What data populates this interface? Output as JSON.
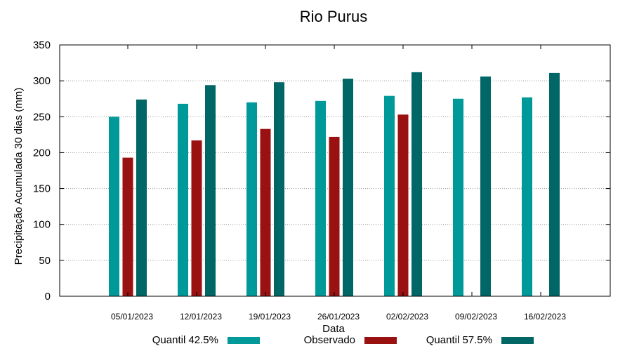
{
  "chart_data": {
    "type": "bar",
    "title": "Rio Purus",
    "xlabel": "Data",
    "ylabel": "Precipitação Acumulada 30 dias (mm)",
    "ylim": [
      0,
      350
    ],
    "yticks": [
      0,
      50,
      100,
      150,
      200,
      250,
      300,
      350
    ],
    "grid": true,
    "legend": "bottom",
    "categories": [
      "05/01/2023",
      "12/01/2023",
      "19/01/2023",
      "26/01/2023",
      "02/02/2023",
      "09/02/2023",
      "16/02/2023"
    ],
    "series": [
      {
        "name": "Quantil 42.5%",
        "color": "#009999",
        "values": [
          250,
          268,
          270,
          272,
          279,
          275,
          277
        ]
      },
      {
        "name": "Observado",
        "color": "#991111",
        "values": [
          193,
          217,
          233,
          222,
          253,
          null,
          null
        ]
      },
      {
        "name": "Quantil 57.5%",
        "color": "#006666",
        "values": [
          274,
          294,
          298,
          303,
          312,
          306,
          311
        ]
      }
    ]
  }
}
